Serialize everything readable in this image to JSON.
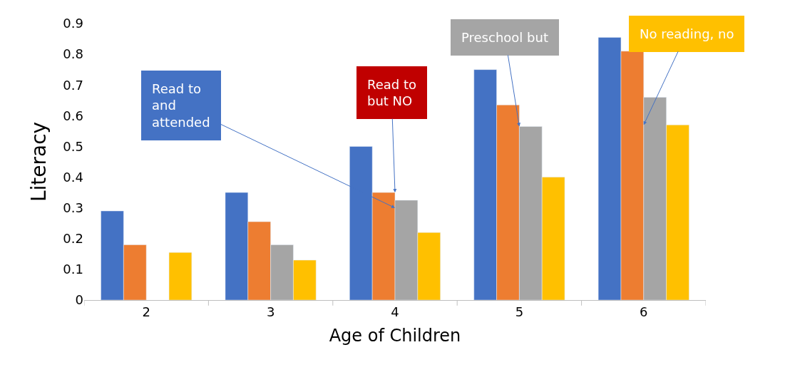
{
  "chart_data": {
    "type": "bar",
    "categories": [
      "2",
      "3",
      "4",
      "5",
      "6"
    ],
    "series": [
      {
        "color": "#4472c4",
        "values": [
          0.29,
          0.35,
          0.5,
          0.75,
          0.855
        ]
      },
      {
        "color": "#ed7d31",
        "values": [
          0.18,
          0.255,
          0.35,
          0.635,
          0.81
        ]
      },
      {
        "color": "#a5a5a5",
        "values": [
          null,
          0.18,
          0.325,
          0.565,
          0.66
        ]
      },
      {
        "color": "#ffc000",
        "values": [
          0.155,
          0.13,
          0.22,
          0.4,
          0.57
        ]
      }
    ],
    "xlabel": "Age of Children",
    "ylabel": "Literacy",
    "yticks": [
      0,
      0.1,
      0.2,
      0.3,
      0.4,
      0.5,
      0.6,
      0.7,
      0.8,
      0.9
    ],
    "annotations": [
      {
        "text": "Read to\nand\nattended",
        "x": "4",
        "y": 0.3
      },
      {
        "text": "Read to\nbut NO",
        "x": "4",
        "y": 0.35
      },
      {
        "text": "Preschool but",
        "x": "5",
        "y": 0.565
      },
      {
        "text": "No reading, no",
        "x": "6",
        "y": 0.57
      }
    ],
    "ylim": [
      0,
      0.9
    ]
  }
}
